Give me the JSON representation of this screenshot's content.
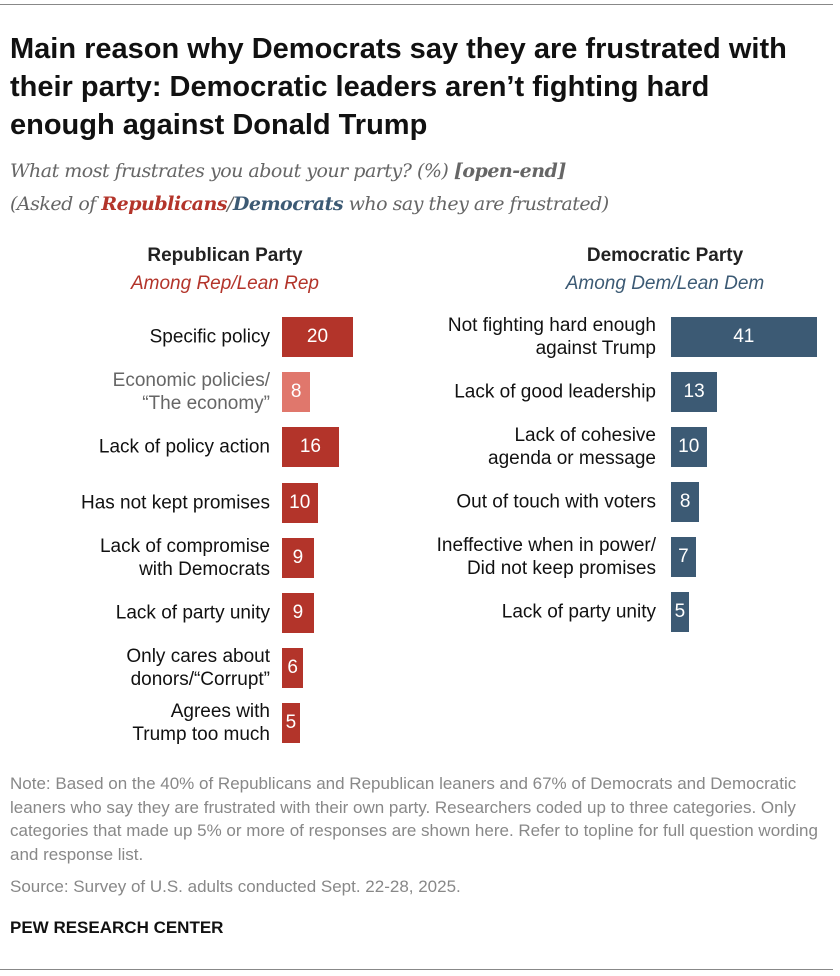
{
  "title": "Main reason why Democrats say they are frustrated with their party: Democratic leaders aren’t fighting hard enough against Donald Trump",
  "subtitle": {
    "question": "What most frustrates you about your party? (%)",
    "question_tag": "[open-end]",
    "asked_prefix": "(Asked of",
    "rep_word": "Republicans",
    "slash": "/",
    "dem_word": "Democrats",
    "asked_suffix": "who say they are frustrated)"
  },
  "colors": {
    "rep": "#B3342A",
    "rep_light": "#E0776C",
    "dem": "#3C5A74",
    "rep_text": "#B3342A",
    "dem_text": "#3C5A74"
  },
  "chart_data": [
    {
      "type": "bar",
      "orientation": "horizontal",
      "title": "Republican Party",
      "subtitle": "Among Rep/Lean Rep",
      "categories": [
        "Specific policy",
        "Economic policies/ “The economy”",
        "Lack of policy action",
        "Has not kept promises",
        "Lack of compromise with Democrats",
        "Lack of party unity",
        "Only cares about donors/“Corrupt”",
        "Agrees with Trump too much"
      ],
      "label_lines": [
        [
          "Specific policy"
        ],
        [
          "Economic policies/",
          "“The economy”"
        ],
        [
          "Lack of policy action"
        ],
        [
          "Has not kept promises"
        ],
        [
          "Lack of compromise",
          "with Democrats"
        ],
        [
          "Lack of party unity"
        ],
        [
          "Only cares about",
          "donors/“Corrupt”"
        ],
        [
          "Agrees with",
          "Trump too much"
        ]
      ],
      "values": [
        20,
        8,
        16,
        10,
        9,
        9,
        6,
        5
      ],
      "highlight_subcategory_index": 1
    },
    {
      "type": "bar",
      "orientation": "horizontal",
      "title": "Democratic Party",
      "subtitle": "Among Dem/Lean Dem",
      "categories": [
        "Not fighting hard enough against Trump",
        "Lack of good leadership",
        "Lack of cohesive agenda or message",
        "Out of touch with voters",
        "Ineffective when in power/ Did not keep promises",
        "Lack of party unity"
      ],
      "label_lines": [
        [
          "Not fighting hard enough",
          "against Trump"
        ],
        [
          "Lack of good leadership"
        ],
        [
          "Lack of cohesive",
          "agenda or message"
        ],
        [
          "Out of touch with voters"
        ],
        [
          "Ineffective when in power/",
          "Did not keep promises"
        ],
        [
          "Lack of party unity"
        ]
      ],
      "values": [
        41,
        13,
        10,
        8,
        7,
        5
      ]
    }
  ],
  "note": "Note: Based on the 40% of Republicans and Republican leaners and 67% of Democrats and Democratic leaners who say they are frustrated with their own party. Researchers coded up to three categories. Only categories that made up 5% or more of responses are shown here. Refer to topline for full question wording and response list.",
  "source": "Source: Survey of U.S. adults conducted Sept. 22-28, 2025.",
  "logo": "PEW RESEARCH CENTER"
}
